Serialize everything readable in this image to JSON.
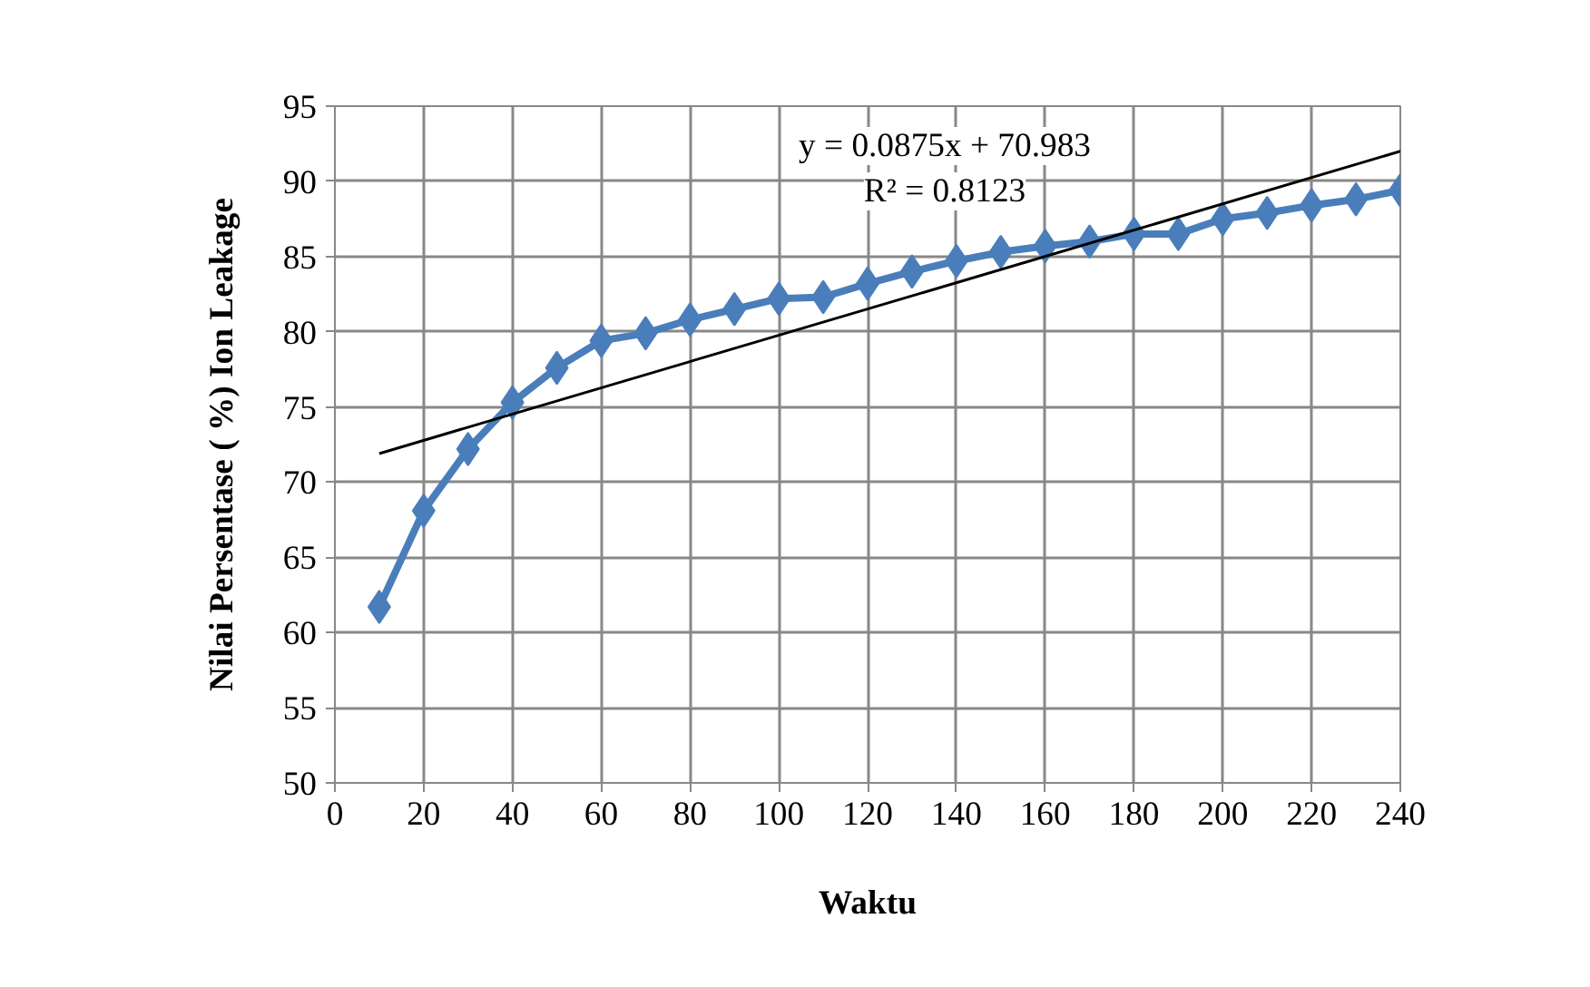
{
  "chart_data": {
    "type": "line",
    "xlabel": "Waktu",
    "ylabel": "Nilai Persentase ( %) Ion Leakage",
    "x": [
      10,
      20,
      30,
      40,
      50,
      60,
      70,
      80,
      90,
      100,
      110,
      120,
      130,
      140,
      150,
      160,
      170,
      180,
      190,
      200,
      210,
      220,
      230,
      240
    ],
    "series": [
      {
        "color": "#4a7ebb",
        "marker": "diamond",
        "values": [
          61.7,
          68.1,
          72.2,
          75.3,
          77.6,
          79.4,
          79.9,
          80.8,
          81.5,
          82.2,
          82.3,
          83.2,
          84.0,
          84.7,
          85.3,
          85.7,
          86.0,
          86.5,
          86.5,
          87.5,
          87.9,
          88.4,
          88.8,
          89.4
        ]
      },
      {
        "type": "line",
        "color": "#000000",
        "marker": "none",
        "x": [
          10,
          240
        ],
        "values": [
          71.9,
          92.0
        ]
      }
    ],
    "annotations": [
      "y = 0.0875x + 70.983",
      "R² = 0.8123"
    ],
    "xlim": [
      0,
      240
    ],
    "ylim": [
      50,
      95
    ],
    "xticks": [
      0,
      20,
      40,
      60,
      80,
      100,
      120,
      140,
      160,
      180,
      200,
      220,
      240
    ],
    "yticks": [
      50,
      55,
      60,
      65,
      70,
      75,
      80,
      85,
      90,
      95
    ],
    "grid": true
  }
}
